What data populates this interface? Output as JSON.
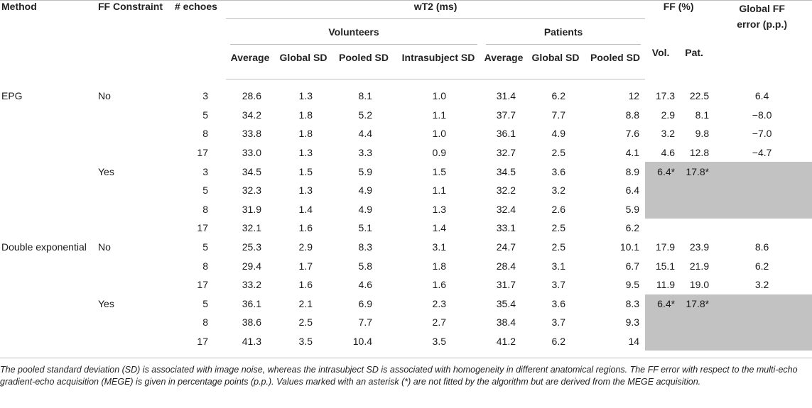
{
  "header": {
    "method": "Method",
    "ff_constraint": "FF Constraint",
    "echoes": "# echoes",
    "wt2": "wT2 (ms)",
    "ff": "FF (%)",
    "global_ff_error": "Global FF error (p.p.)",
    "volunteers": "Volunteers",
    "patients": "Patients",
    "average": "Average",
    "global_sd": "Global SD",
    "pooled_sd": "Pooled SD",
    "intrasubject_sd": "Intrasubject SD",
    "vol": "Vol.",
    "pat": "Pat."
  },
  "rows": [
    {
      "method": "EPG",
      "constraint": "No",
      "echoes": "3",
      "v_avg": "28.6",
      "v_gsd": "1.3",
      "v_psd": "8.1",
      "v_isd": "1.0",
      "p_avg": "31.4",
      "p_gsd": "6.2",
      "p_psd": "12",
      "ff_vol": "17.3",
      "ff_pat": "22.5",
      "ff_err": "6.4"
    },
    {
      "method": "",
      "constraint": "",
      "echoes": "5",
      "v_avg": "34.2",
      "v_gsd": "1.8",
      "v_psd": "5.2",
      "v_isd": "1.1",
      "p_avg": "37.7",
      "p_gsd": "7.7",
      "p_psd": "8.8",
      "ff_vol": "2.9",
      "ff_pat": "8.1",
      "ff_err": "−8.0"
    },
    {
      "method": "",
      "constraint": "",
      "echoes": "8",
      "v_avg": "33.8",
      "v_gsd": "1.8",
      "v_psd": "4.4",
      "v_isd": "1.0",
      "p_avg": "36.1",
      "p_gsd": "4.9",
      "p_psd": "7.6",
      "ff_vol": "3.2",
      "ff_pat": "9.8",
      "ff_err": "−7.0"
    },
    {
      "method": "",
      "constraint": "",
      "echoes": "17",
      "v_avg": "33.0",
      "v_gsd": "1.3",
      "v_psd": "3.3",
      "v_isd": "0.9",
      "p_avg": "32.7",
      "p_gsd": "2.5",
      "p_psd": "4.1",
      "ff_vol": "4.6",
      "ff_pat": "12.8",
      "ff_err": "−4.7"
    },
    {
      "method": "",
      "constraint": "Yes",
      "echoes": "3",
      "v_avg": "34.5",
      "v_gsd": "1.5",
      "v_psd": "5.9",
      "v_isd": "1.5",
      "p_avg": "34.5",
      "p_gsd": "3.6",
      "p_psd": "8.9",
      "ff_vol": "6.4*",
      "ff_pat": "17.8*",
      "ff_err": "",
      "shade": true
    },
    {
      "method": "",
      "constraint": "",
      "echoes": "5",
      "v_avg": "32.3",
      "v_gsd": "1.3",
      "v_psd": "4.9",
      "v_isd": "1.1",
      "p_avg": "32.2",
      "p_gsd": "3.2",
      "p_psd": "6.4",
      "ff_vol": "",
      "ff_pat": "",
      "ff_err": "",
      "shade": true
    },
    {
      "method": "",
      "constraint": "",
      "echoes": "8",
      "v_avg": "31.9",
      "v_gsd": "1.4",
      "v_psd": "4.9",
      "v_isd": "1.3",
      "p_avg": "32.4",
      "p_gsd": "2.6",
      "p_psd": "5.9",
      "ff_vol": "",
      "ff_pat": "",
      "ff_err": "",
      "shade": true
    },
    {
      "method": "",
      "constraint": "",
      "echoes": "17",
      "v_avg": "32.1",
      "v_gsd": "1.6",
      "v_psd": "5.1",
      "v_isd": "1.4",
      "p_avg": "33.1",
      "p_gsd": "2.5",
      "p_psd": "6.2",
      "ff_vol": "",
      "ff_pat": "",
      "ff_err": ""
    },
    {
      "method": "Double exponential",
      "constraint": "No",
      "echoes": "5",
      "v_avg": "25.3",
      "v_gsd": "2.9",
      "v_psd": "8.3",
      "v_isd": "3.1",
      "p_avg": "24.7",
      "p_gsd": "2.5",
      "p_psd": "10.1",
      "ff_vol": "17.9",
      "ff_pat": "23.9",
      "ff_err": "8.6"
    },
    {
      "method": "",
      "constraint": "",
      "echoes": "8",
      "v_avg": "29.4",
      "v_gsd": "1.7",
      "v_psd": "5.8",
      "v_isd": "1.8",
      "p_avg": "28.4",
      "p_gsd": "3.1",
      "p_psd": "6.7",
      "ff_vol": "15.1",
      "ff_pat": "21.9",
      "ff_err": "6.2"
    },
    {
      "method": "",
      "constraint": "",
      "echoes": "17",
      "v_avg": "33.2",
      "v_gsd": "1.6",
      "v_psd": "4.6",
      "v_isd": "1.6",
      "p_avg": "31.7",
      "p_gsd": "3.7",
      "p_psd": "9.5",
      "ff_vol": "11.9",
      "ff_pat": "19.0",
      "ff_err": "3.2"
    },
    {
      "method": "",
      "constraint": "Yes",
      "echoes": "5",
      "v_avg": "36.1",
      "v_gsd": "2.1",
      "v_psd": "6.9",
      "v_isd": "2.3",
      "p_avg": "35.4",
      "p_gsd": "3.6",
      "p_psd": "8.3",
      "ff_vol": "6.4*",
      "ff_pat": "17.8*",
      "ff_err": "",
      "shade": true
    },
    {
      "method": "",
      "constraint": "",
      "echoes": "8",
      "v_avg": "38.6",
      "v_gsd": "2.5",
      "v_psd": "7.7",
      "v_isd": "2.7",
      "p_avg": "38.4",
      "p_gsd": "3.7",
      "p_psd": "9.3",
      "ff_vol": "",
      "ff_pat": "",
      "ff_err": "",
      "shade": true
    },
    {
      "method": "",
      "constraint": "",
      "echoes": "17",
      "v_avg": "41.3",
      "v_gsd": "3.5",
      "v_psd": "10.4",
      "v_isd": "3.5",
      "p_avg": "41.2",
      "p_gsd": "6.2",
      "p_psd": "14",
      "ff_vol": "",
      "ff_pat": "",
      "ff_err": "",
      "shade": true
    }
  ],
  "caption": "The pooled standard deviation (SD) is associated with image noise, whereas the intrasubject SD is associated with homogeneity in different anatomical regions. The FF error with respect to the multi-echo gradient-echo acquisition (MEGE) is given in percentage points (p.p.). Values marked with an asterisk (*) are not fitted by the algorithm but are derived from the MEGE acquisition."
}
